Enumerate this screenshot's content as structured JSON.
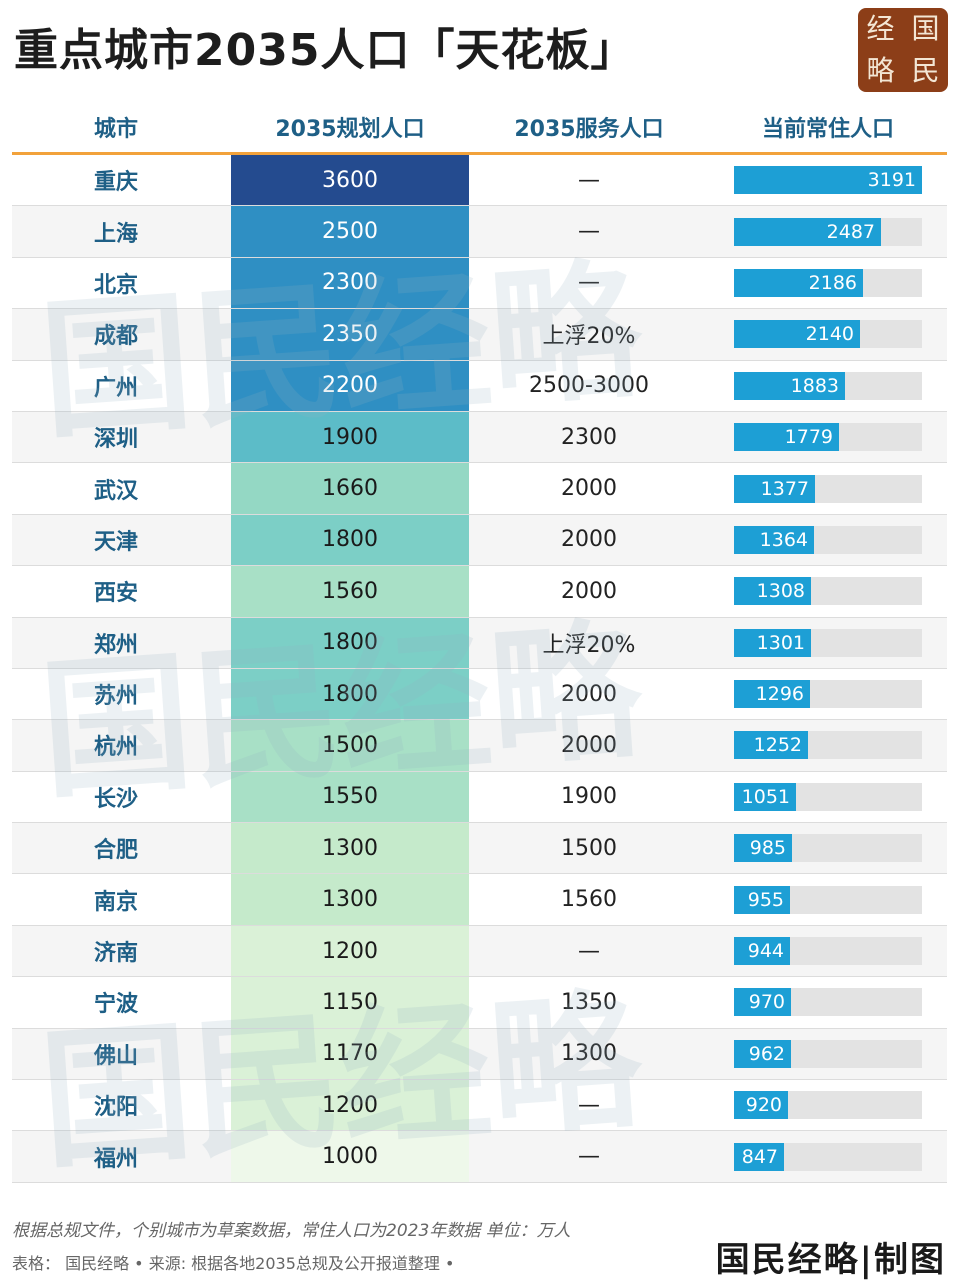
{
  "title": "重点城市2035人口「天花板」",
  "logo": [
    "经",
    "国",
    "略",
    "民"
  ],
  "watermark_text": "国民经略",
  "headers": [
    "城市",
    "2035规划人口",
    "2035服务人口",
    "当前常住人口"
  ],
  "colors": {
    "header_text": "#1e5f86",
    "header_rule": "#f2a23b",
    "bar": "#1d9fd5",
    "bar_track": "#e3e3e3",
    "logo_bg": "#8c3e18"
  },
  "chart_data": {
    "type": "table",
    "columns": [
      "城市",
      "2035规划人口",
      "2035服务人口",
      "当前常住人口"
    ],
    "current_max": 3191,
    "rows": [
      {
        "city": "重庆",
        "plan": 3600,
        "serve": "—",
        "current": 3191
      },
      {
        "city": "上海",
        "plan": 2500,
        "serve": "—",
        "current": 2487
      },
      {
        "city": "北京",
        "plan": 2300,
        "serve": "—",
        "current": 2186
      },
      {
        "city": "成都",
        "plan": 2350,
        "serve": "上浮20%",
        "current": 2140
      },
      {
        "city": "广州",
        "plan": 2200,
        "serve": "2500-3000",
        "current": 1883
      },
      {
        "city": "深圳",
        "plan": 1900,
        "serve": "2300",
        "current": 1779
      },
      {
        "city": "武汉",
        "plan": 1660,
        "serve": "2000",
        "current": 1377
      },
      {
        "city": "天津",
        "plan": 1800,
        "serve": "2000",
        "current": 1364
      },
      {
        "city": "西安",
        "plan": 1560,
        "serve": "2000",
        "current": 1308
      },
      {
        "city": "郑州",
        "plan": 1800,
        "serve": "上浮20%",
        "current": 1301
      },
      {
        "city": "苏州",
        "plan": 1800,
        "serve": "2000",
        "current": 1296
      },
      {
        "city": "杭州",
        "plan": 1500,
        "serve": "2000",
        "current": 1252
      },
      {
        "city": "长沙",
        "plan": 1550,
        "serve": "1900",
        "current": 1051
      },
      {
        "city": "合肥",
        "plan": 1300,
        "serve": "1500",
        "current": 985
      },
      {
        "city": "南京",
        "plan": 1300,
        "serve": "1560",
        "current": 955
      },
      {
        "city": "济南",
        "plan": 1200,
        "serve": "—",
        "current": 944
      },
      {
        "city": "宁波",
        "plan": 1150,
        "serve": "1350",
        "current": 970
      },
      {
        "city": "佛山",
        "plan": 1170,
        "serve": "1300",
        "current": 962
      },
      {
        "city": "沈阳",
        "plan": 1200,
        "serve": "—",
        "current": 920
      },
      {
        "city": "福州",
        "plan": 1000,
        "serve": "—",
        "current": 847
      }
    ]
  },
  "footer": {
    "note": "根据总规文件，个别城市为草案数据，常住人口为2023年数据 单位：万人",
    "source": "表格： 国民经略 • 来源: 根据各地2035总规及公开报道整理 •",
    "brand": "国民经略|制图"
  }
}
